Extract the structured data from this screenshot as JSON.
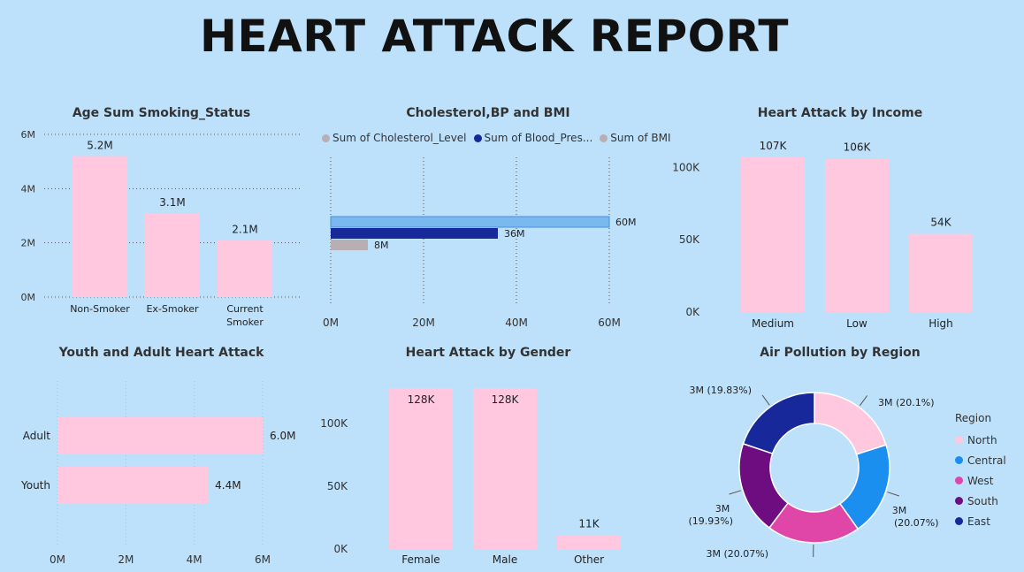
{
  "page_title": "HEART ATTACK REPORT",
  "colors": {
    "background": "#bde0fb",
    "bar_pink": "#ffc8de",
    "cholesterol": "#7ab8f0",
    "blood_pressure": "#17289b",
    "bmi": "#b8aeb4",
    "north": "#ffc8de",
    "central": "#1a8ff0",
    "west": "#e046a8",
    "south": "#6e0d80",
    "east": "#17289b"
  },
  "chart_data": [
    {
      "id": "smoking",
      "type": "bar",
      "title": "Age Sum Smoking_Status",
      "categories": [
        "Non-Smoker",
        "Ex-Smoker",
        "Current Smoker"
      ],
      "values": [
        5.2,
        3.1,
        2.1
      ],
      "data_labels": [
        "5.2M",
        "3.1M",
        "2.1M"
      ],
      "unit": "M",
      "yticks": [
        "0M",
        "2M",
        "4M",
        "6M"
      ],
      "ylim": [
        0,
        6
      ],
      "grid": true
    },
    {
      "id": "cholesterol",
      "type": "bar",
      "orientation": "horizontal",
      "title": "Cholesterol,BP and BMI",
      "series": [
        {
          "name": "Sum of Cholesterol_Level",
          "value": 60,
          "label": "60M"
        },
        {
          "name": "Sum of Blood_Pres...",
          "value": 36,
          "label": "36M"
        },
        {
          "name": "Sum of BMI",
          "value": 8,
          "label": "8M"
        }
      ],
      "xticks": [
        "0M",
        "20M",
        "40M",
        "60M"
      ],
      "xlim": [
        0,
        60
      ],
      "unit": "M",
      "legend_position": "top",
      "grid": true
    },
    {
      "id": "income",
      "type": "bar",
      "title": "Heart Attack by Income",
      "categories": [
        "Medium",
        "Low",
        "High"
      ],
      "values": [
        107,
        106,
        54
      ],
      "data_labels": [
        "107K",
        "106K",
        "54K"
      ],
      "unit": "K",
      "yticks": [
        "0K",
        "50K",
        "100K"
      ],
      "ylim": [
        0,
        110
      ],
      "grid": false
    },
    {
      "id": "youth_adult",
      "type": "bar",
      "orientation": "horizontal",
      "title": "Youth and Adult Heart Attack",
      "categories": [
        "Adult",
        "Youth"
      ],
      "values": [
        6.0,
        4.4
      ],
      "data_labels": [
        "6.0M",
        "4.4M"
      ],
      "unit": "M",
      "xticks": [
        "0M",
        "2M",
        "4M",
        "6M"
      ],
      "xlim": [
        0,
        6
      ],
      "grid": true
    },
    {
      "id": "gender",
      "type": "bar",
      "title": "Heart Attack by Gender",
      "categories": [
        "Female",
        "Male",
        "Other"
      ],
      "values": [
        128,
        128,
        11
      ],
      "data_labels": [
        "128K",
        "128K",
        "11K"
      ],
      "unit": "K",
      "yticks": [
        "0K",
        "50K",
        "100K"
      ],
      "ylim": [
        0,
        128
      ],
      "grid": false
    },
    {
      "id": "region",
      "type": "pie",
      "donut": true,
      "title": "Air Pollution by Region",
      "legend_title": "Region",
      "legend_position": "right",
      "slices": [
        {
          "name": "North",
          "percent": 20.1,
          "label": "3M (20.1%)"
        },
        {
          "name": "Central",
          "percent": 20.07,
          "label": "3M (20.07%)"
        },
        {
          "name": "West",
          "percent": 20.07,
          "label": "3M (20.07%)"
        },
        {
          "name": "South",
          "percent": 19.93,
          "label": "3M (19.93%)"
        },
        {
          "name": "East",
          "percent": 19.83,
          "label": "3M (19.83%)"
        }
      ]
    }
  ]
}
